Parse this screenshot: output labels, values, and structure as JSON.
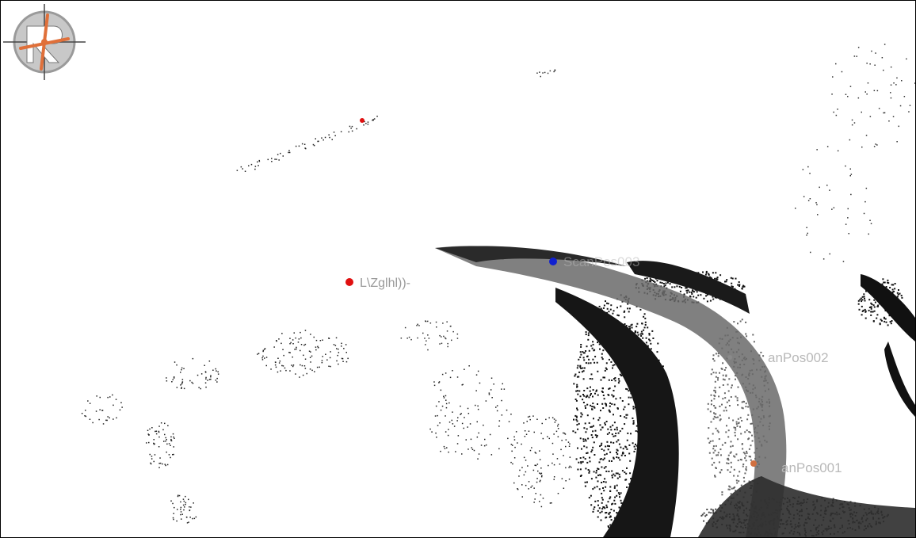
{
  "viewer": {
    "logo_icon": "riegl-crosshair-logo-icon",
    "colors": {
      "background": "#ffffff",
      "points_dark": "#111111",
      "points_gray": "#6e6e6e",
      "marker_red": "#e01010",
      "marker_blue": "#1020d0",
      "marker_orange": "#d07040",
      "label": "#b9b9b9"
    },
    "markers": [
      {
        "id": "marker-1",
        "color": "#e01010",
        "label": "L\\Zglhl))-"
      },
      {
        "id": "marker-2",
        "color": "#e01010",
        "label": ""
      },
      {
        "id": "scanpos-003",
        "color": "#1020d0",
        "label": "ScanPos003"
      },
      {
        "id": "scanpos-002",
        "color": "#8a8a8a",
        "label": "anPos002"
      },
      {
        "id": "scanpos-001",
        "color": "#d07040",
        "label": "anPos001"
      }
    ]
  }
}
